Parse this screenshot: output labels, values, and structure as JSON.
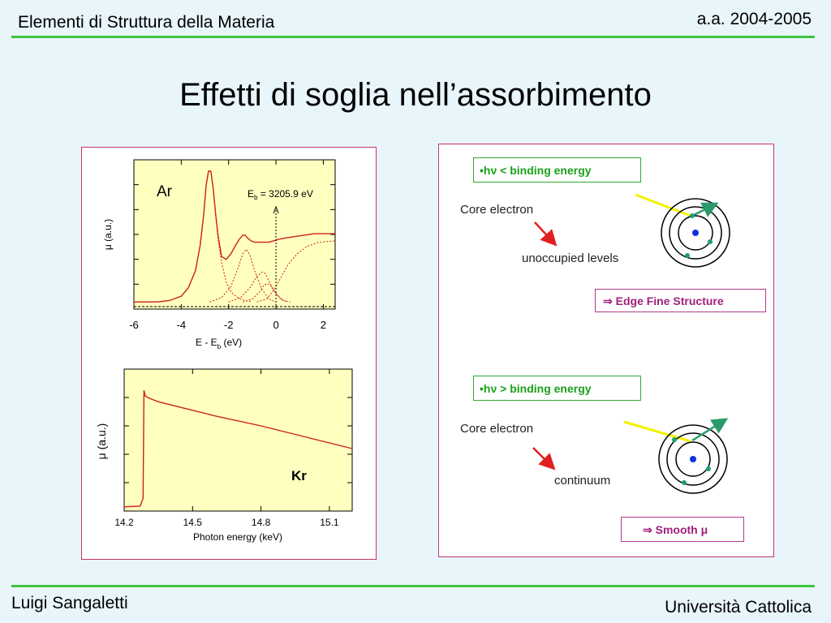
{
  "header": {
    "course": "Elementi di Struttura della Materia",
    "year": "a.a. 2004-2005"
  },
  "title": "Effetti di soglia nell’assorbimento",
  "footer": {
    "author": "Luigi Sangaletti",
    "university": "Università Cattolica"
  },
  "colors": {
    "accent_rule": "#3fc43f",
    "panel_border": "#c8336c",
    "plot_bg": "#ffffc0",
    "curve": "#cc2020",
    "photon": "#f2f200",
    "electron": "#1aa070",
    "nucleus": "#1030e0",
    "arrow": "#e02020"
  },
  "chart_data": [
    {
      "type": "line",
      "label": "Ar",
      "annotation_main": "E",
      "annotation_sub": "b",
      "annotation_rest": " = 3205.9 eV",
      "ylabel": "μ (a.u.)",
      "xlabel_main": "E - E",
      "xlabel_sub": "b",
      "xlabel_rest": " (eV)",
      "xlim": [
        -6,
        2.5
      ],
      "ylim": [
        -0.05,
        1.0
      ],
      "xticks": [
        "-6",
        "-4",
        "-2",
        "0",
        "2"
      ],
      "xtick_values": [
        -6,
        -4,
        -2,
        0,
        2
      ],
      "series": [
        {
          "style": "solid",
          "x": [
            -6.0,
            -5.0,
            -4.5,
            -4.0,
            -3.7,
            -3.4,
            -3.2,
            -3.05,
            -2.95,
            -2.85,
            -2.75,
            -2.65,
            -2.55,
            -2.45,
            -2.3,
            -2.1,
            -1.9,
            -1.7,
            -1.55,
            -1.4,
            -1.3,
            -1.2,
            -1.05,
            -0.9,
            -0.75,
            -0.6,
            -0.45,
            -0.3,
            -0.1,
            0.1,
            0.4,
            0.8,
            1.2,
            1.6,
            2.0,
            2.5
          ],
          "y": [
            0.0,
            0.0,
            0.01,
            0.04,
            0.1,
            0.22,
            0.4,
            0.62,
            0.82,
            0.92,
            0.92,
            0.8,
            0.62,
            0.47,
            0.32,
            0.3,
            0.34,
            0.4,
            0.44,
            0.47,
            0.47,
            0.45,
            0.43,
            0.42,
            0.42,
            0.42,
            0.42,
            0.42,
            0.43,
            0.44,
            0.45,
            0.46,
            0.47,
            0.48,
            0.48,
            0.48
          ]
        },
        {
          "style": "dotted",
          "x": [
            -6.0,
            -5.0,
            -4.5,
            -4.0,
            -3.7,
            -3.4,
            -3.2,
            -3.05,
            -2.95,
            -2.85,
            -2.75,
            -2.65,
            -2.55,
            -2.45,
            -2.3,
            -2.1,
            -1.9,
            -1.7,
            -1.5,
            -1.3,
            -1.0
          ],
          "y": [
            0.0,
            0.0,
            0.01,
            0.04,
            0.1,
            0.22,
            0.4,
            0.62,
            0.82,
            0.92,
            0.92,
            0.8,
            0.62,
            0.45,
            0.28,
            0.14,
            0.07,
            0.04,
            0.02,
            0.01,
            0.0
          ]
        },
        {
          "style": "dotted",
          "x": [
            -2.8,
            -2.3,
            -1.9,
            -1.6,
            -1.4,
            -1.25,
            -1.1,
            -0.9,
            -0.6,
            -0.3,
            0.0
          ],
          "y": [
            0.0,
            0.03,
            0.11,
            0.24,
            0.34,
            0.37,
            0.33,
            0.22,
            0.09,
            0.02,
            0.0
          ]
        },
        {
          "style": "dotted",
          "x": [
            -2.0,
            -1.5,
            -1.1,
            -0.8,
            -0.6,
            -0.45,
            -0.3,
            -0.1,
            0.2,
            0.5
          ],
          "y": [
            0.0,
            0.03,
            0.1,
            0.18,
            0.21,
            0.2,
            0.15,
            0.08,
            0.02,
            0.0
          ]
        },
        {
          "style": "dotted",
          "x": [
            -1.4,
            -1.0,
            -0.7,
            -0.5,
            -0.35,
            -0.2,
            0.0,
            0.3,
            0.6
          ],
          "y": [
            0.0,
            0.02,
            0.07,
            0.12,
            0.13,
            0.11,
            0.06,
            0.01,
            0.0
          ]
        },
        {
          "style": "dotted",
          "x": [
            -0.8,
            -0.4,
            -0.1,
            0.2,
            0.5,
            0.9,
            1.3,
            1.8,
            2.5
          ],
          "y": [
            0.0,
            0.02,
            0.08,
            0.17,
            0.26,
            0.34,
            0.39,
            0.42,
            0.43
          ]
        }
      ]
    },
    {
      "type": "line",
      "label": "Kr",
      "ylabel": "μ (a.u.)",
      "xlabel": "Photon energy (keV)",
      "xlim": [
        14.2,
        15.2
      ],
      "ylim": [
        0,
        1.0
      ],
      "xticks": [
        "14.2",
        "14.5",
        "14.8",
        "15.1"
      ],
      "xtick_values": [
        14.2,
        14.5,
        14.8,
        15.1
      ],
      "series": [
        {
          "style": "solid",
          "x": [
            14.2,
            14.27,
            14.283,
            14.287,
            14.293,
            14.31,
            14.35,
            14.45,
            14.6,
            14.8,
            15.0,
            15.2
          ],
          "y": [
            0.03,
            0.035,
            0.09,
            0.85,
            0.81,
            0.795,
            0.77,
            0.73,
            0.67,
            0.6,
            0.52,
            0.44
          ]
        }
      ]
    }
  ],
  "diagram": {
    "top": {
      "bullet": "•",
      "nu_phrase": "hν",
      "condition": " < binding energy",
      "core_label": "Core electron",
      "target_label": "unoccupied levels",
      "result_arrow": "⇒",
      "result_text": " Edge Fine Structure"
    },
    "bottom": {
      "bullet": "•",
      "nu_phrase": "hν",
      "condition": " > binding energy",
      "core_label": "Core electron",
      "target_label": "continuum",
      "result_arrow": "⇒",
      "result_text": " Smooth μ"
    }
  }
}
